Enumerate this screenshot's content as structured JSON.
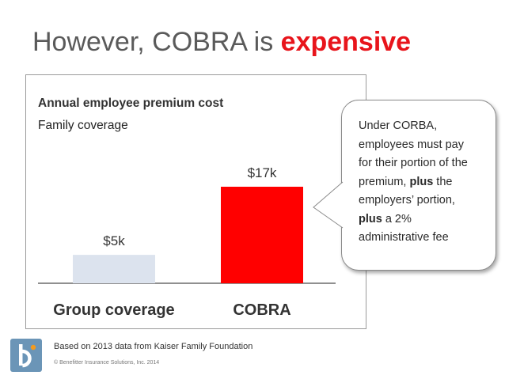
{
  "slide": {
    "title_prefix": "However, COBRA is ",
    "title_emphasis": "expensive",
    "source_note": "Based on 2013 data from Kaiser Family Foundation",
    "copyright": "© Benefitter Insurance Solutions, Inc. 2014"
  },
  "callout": {
    "line1": "Under CORBA,",
    "line2": "employees must pay",
    "line3": "for their portion of the",
    "line4": "premium, ",
    "line4_bold": "plus",
    "line4_rest": " the",
    "line5": "employers’ portion,",
    "line6_bold": "plus",
    "line6_rest": " a 2%",
    "line7": "administrative fee"
  },
  "colors": {
    "title_accent": "#e8141b",
    "group_bar": "#dce3ee",
    "cobra_bar": "#ff0000",
    "logo": "#6b95b7",
    "logo_accent": "#f29a1f"
  },
  "chart_data": {
    "type": "bar",
    "title": "Annual employee premium cost",
    "subtitle": "Family coverage",
    "categories": [
      "Group coverage",
      "COBRA"
    ],
    "values": [
      5,
      17
    ],
    "data_labels": [
      "$5k",
      "$17k"
    ],
    "bar_colors": [
      "#dce3ee",
      "#ff0000"
    ],
    "unit": "$k",
    "ylim": [
      0,
      17
    ],
    "grid": false,
    "legend": "none"
  }
}
